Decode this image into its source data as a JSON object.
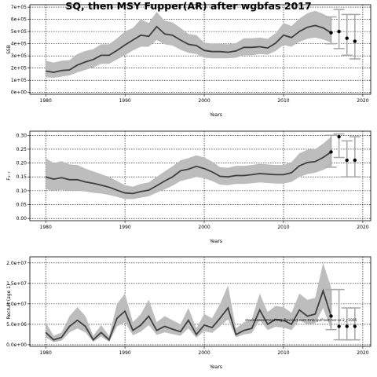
{
  "title": "SQ, then MSY Fupper(AR) after wgbfas 2017",
  "colors": {
    "band": "#bdbdbd",
    "line": "#3f3f3f",
    "proj": "#aaaaaa",
    "dot": "#000000",
    "grid": "#000000"
  },
  "chart_data": [
    {
      "id": "ssb",
      "type": "line",
      "title": "",
      "xlabel": "Years",
      "ylabel": "SSB",
      "xlim": [
        1978,
        2021
      ],
      "ylim": [
        -15000,
        720000
      ],
      "grid": true,
      "x_ticks": [
        1980,
        1990,
        2000,
        2010,
        2020
      ],
      "x_tick_labels": [
        "1980",
        "1990",
        "2000",
        "2010",
        "2020"
      ],
      "y_ticks": [
        0,
        100000,
        200000,
        300000,
        400000,
        500000,
        600000,
        700000
      ],
      "y_tick_labels": [
        "0e+00",
        "1e+05",
        "2e+05",
        "3e+05",
        "4e+05",
        "5e+05",
        "6e+05",
        "7e+05"
      ],
      "x": [
        1980,
        1981,
        1982,
        1983,
        1984,
        1985,
        1986,
        1987,
        1988,
        1989,
        1990,
        1991,
        1992,
        1993,
        1994,
        1995,
        1996,
        1997,
        1998,
        1999,
        2000,
        2001,
        2002,
        2003,
        2004,
        2005,
        2006,
        2007,
        2008,
        2009,
        2010,
        2011,
        2012,
        2013,
        2014,
        2015,
        2016
      ],
      "median": [
        175000,
        165000,
        180000,
        185000,
        225000,
        250000,
        270000,
        305000,
        305000,
        345000,
        390000,
        430000,
        470000,
        460000,
        540000,
        480000,
        470000,
        430000,
        395000,
        385000,
        345000,
        335000,
        335000,
        330000,
        340000,
        370000,
        370000,
        375000,
        365000,
        405000,
        470000,
        450000,
        500000,
        535000,
        550000,
        530000,
        490000
      ],
      "lower": [
        125000,
        120000,
        130000,
        140000,
        165000,
        185000,
        205000,
        235000,
        235000,
        270000,
        305000,
        345000,
        375000,
        375000,
        430000,
        395000,
        385000,
        350000,
        325000,
        315000,
        285000,
        280000,
        280000,
        280000,
        285000,
        305000,
        305000,
        315000,
        310000,
        340000,
        390000,
        375000,
        415000,
        440000,
        450000,
        435000,
        410000
      ],
      "upper": [
        260000,
        245000,
        260000,
        265000,
        315000,
        340000,
        355000,
        395000,
        395000,
        445000,
        500000,
        530000,
        600000,
        570000,
        660000,
        590000,
        575000,
        530000,
        480000,
        470000,
        410000,
        400000,
        400000,
        395000,
        405000,
        445000,
        445000,
        450000,
        440000,
        485000,
        570000,
        545000,
        605000,
        650000,
        670000,
        645000,
        610000
      ],
      "projection": [
        {
          "x": 2016,
          "median": 490000,
          "lower": 400000,
          "upper": 620000
        },
        {
          "x": 2017,
          "median": 500000,
          "lower": 360000,
          "upper": 680000
        },
        {
          "x": 2018,
          "median": 445000,
          "lower": 305000,
          "upper": 640000
        },
        {
          "x": 2019,
          "median": 420000,
          "lower": 275000,
          "upper": 640000
        }
      ]
    },
    {
      "id": "fbar",
      "type": "line",
      "title": "",
      "xlabel": "Years",
      "ylabel": "F₃₋₇",
      "xlim": [
        1978,
        2021
      ],
      "ylim": [
        -0.008,
        0.315
      ],
      "grid": true,
      "x_ticks": [
        1980,
        1990,
        2000,
        2010,
        2020
      ],
      "x_tick_labels": [
        "1980",
        "1990",
        "2000",
        "2010",
        "2020"
      ],
      "y_ticks": [
        0,
        0.05,
        0.1,
        0.15,
        0.2,
        0.25,
        0.3
      ],
      "y_tick_labels": [
        "0.00",
        "0.05",
        "0.10",
        "0.15",
        "0.20",
        "0.25",
        "0.30"
      ],
      "x": [
        1980,
        1981,
        1982,
        1983,
        1984,
        1985,
        1986,
        1987,
        1988,
        1989,
        1990,
        1991,
        1992,
        1993,
        1994,
        1995,
        1996,
        1997,
        1998,
        1999,
        2000,
        2001,
        2002,
        2003,
        2004,
        2005,
        2006,
        2007,
        2008,
        2009,
        2010,
        2011,
        2012,
        2013,
        2014,
        2015,
        2016
      ],
      "median": [
        0.15,
        0.142,
        0.147,
        0.14,
        0.14,
        0.132,
        0.127,
        0.12,
        0.113,
        0.102,
        0.092,
        0.09,
        0.097,
        0.102,
        0.118,
        0.135,
        0.15,
        0.172,
        0.178,
        0.188,
        0.18,
        0.168,
        0.152,
        0.15,
        0.155,
        0.155,
        0.158,
        0.162,
        0.16,
        0.158,
        0.158,
        0.165,
        0.19,
        0.202,
        0.205,
        0.22,
        0.24
      ],
      "lower": [
        0.105,
        0.1,
        0.103,
        0.1,
        0.1,
        0.097,
        0.093,
        0.09,
        0.085,
        0.078,
        0.07,
        0.07,
        0.075,
        0.08,
        0.093,
        0.105,
        0.118,
        0.135,
        0.142,
        0.15,
        0.145,
        0.135,
        0.122,
        0.12,
        0.125,
        0.125,
        0.127,
        0.13,
        0.128,
        0.126,
        0.126,
        0.132,
        0.15,
        0.16,
        0.165,
        0.175,
        0.19
      ],
      "upper": [
        0.218,
        0.2,
        0.207,
        0.195,
        0.193,
        0.18,
        0.17,
        0.16,
        0.15,
        0.135,
        0.12,
        0.115,
        0.125,
        0.13,
        0.15,
        0.17,
        0.188,
        0.21,
        0.218,
        0.228,
        0.22,
        0.205,
        0.185,
        0.183,
        0.19,
        0.19,
        0.193,
        0.197,
        0.195,
        0.193,
        0.193,
        0.203,
        0.235,
        0.248,
        0.25,
        0.27,
        0.295
      ],
      "projection": [
        {
          "x": 2016,
          "median": 0.24,
          "lower": 0.185,
          "upper": 0.3
        },
        {
          "x": 2017,
          "median": 0.295,
          "lower": 0.22,
          "upper": 0.305
        },
        {
          "x": 2018,
          "median": 0.21,
          "lower": 0.15,
          "upper": 0.28
        },
        {
          "x": 2019,
          "median": 0.21,
          "lower": 0.15,
          "upper": 0.295
        }
      ]
    },
    {
      "id": "recruit",
      "type": "line",
      "title": "",
      "xlabel": "Years",
      "ylabel": "Recruit (age 1)",
      "xlim": [
        1978,
        2021
      ],
      "ylim": [
        -400000,
        21500000
      ],
      "grid": true,
      "x_ticks": [
        1980,
        1990,
        2000,
        2010,
        2020
      ],
      "x_tick_labels": [
        "1980",
        "1990",
        "2000",
        "2010",
        "2020"
      ],
      "y_ticks": [
        0,
        5000000,
        10000000,
        15000000,
        20000000
      ],
      "y_tick_labels": [
        "0.0e+00",
        "5.0e+06",
        "1.0e+07",
        "1.5e+07",
        "2.0e+07"
      ],
      "annotation": "stockassessment.org_Revised sam-tmb-gulf-bot-her-ar-2_r1005",
      "x": [
        1980,
        1981,
        1982,
        1983,
        1984,
        1985,
        1986,
        1987,
        1988,
        1989,
        1990,
        1991,
        1992,
        1993,
        1994,
        1995,
        1996,
        1997,
        1998,
        1999,
        2000,
        2001,
        2002,
        2003,
        2004,
        2005,
        2006,
        2007,
        2008,
        2009,
        2010,
        2011,
        2012,
        2013,
        2014,
        2015,
        2016
      ],
      "median": [
        3000000,
        1200000,
        1800000,
        4500000,
        6000000,
        4500000,
        1200000,
        3000000,
        1200000,
        6500000,
        8200000,
        3500000,
        4800000,
        7000000,
        3500000,
        4500000,
        3800000,
        3200000,
        6000000,
        2500000,
        4800000,
        4200000,
        6500000,
        9000000,
        2500000,
        3500000,
        4000000,
        8500000,
        5000000,
        6200000,
        6000000,
        5000000,
        8500000,
        7000000,
        7500000,
        13200000,
        7000000
      ],
      "lower": [
        1800000,
        600000,
        1000000,
        3000000,
        4000000,
        3000000,
        700000,
        2000000,
        700000,
        4500000,
        5500000,
        2300000,
        3200000,
        4800000,
        2400000,
        3000000,
        2600000,
        2200000,
        4000000,
        1700000,
        3300000,
        2900000,
        4500000,
        6200000,
        1800000,
        2500000,
        2800000,
        6000000,
        3600000,
        4400000,
        4200000,
        3600000,
        6000000,
        5000000,
        5200000,
        9000000,
        3700000
      ],
      "upper": [
        5500000,
        2200000,
        3000000,
        7000000,
        9200000,
        7000000,
        2200000,
        4800000,
        2200000,
        10000000,
        12500000,
        5500000,
        7500000,
        11000000,
        5500000,
        7000000,
        6000000,
        5000000,
        9000000,
        4000000,
        7500000,
        6500000,
        10000000,
        14500000,
        4000000,
        5500000,
        6200000,
        12500000,
        8000000,
        9500000,
        9200000,
        7800000,
        12500000,
        11000000,
        11500000,
        20000000,
        14000000
      ],
      "projection": [
        {
          "x": 2016,
          "median": 7000000,
          "lower": 3700000,
          "upper": 13500000
        },
        {
          "x": 2017,
          "median": 4500000,
          "lower": 1200000,
          "upper": 13500000
        },
        {
          "x": 2018,
          "median": 4500000,
          "lower": 1200000,
          "upper": 9000000
        },
        {
          "x": 2019,
          "median": 4500000,
          "lower": 1200000,
          "upper": 9000000
        }
      ]
    }
  ]
}
